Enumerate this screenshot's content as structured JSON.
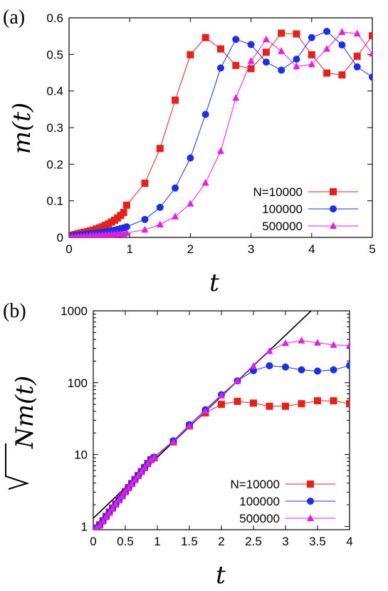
{
  "chart_data": [
    {
      "type": "line",
      "panel_label": "(a)",
      "xlabel": "t",
      "ylabel": "m(t)",
      "xlim": [
        0,
        5
      ],
      "ylim": [
        0,
        0.6
      ],
      "x_ticks": [
        "0",
        "1",
        "2",
        "3",
        "4",
        "5"
      ],
      "y_ticks": [
        "0",
        "0.1",
        "0.2",
        "0.3",
        "0.4",
        "0.5",
        "0.6"
      ],
      "legend_position": "bottom-right",
      "series": [
        {
          "name": "N=10000",
          "color": "#e8201a",
          "marker": "square",
          "x": [
            0,
            0.05,
            0.1,
            0.15,
            0.2,
            0.25,
            0.3,
            0.35,
            0.4,
            0.45,
            0.5,
            0.55,
            0.6,
            0.65,
            0.7,
            0.75,
            0.8,
            0.85,
            0.9,
            0.95,
            1.25,
            1.5,
            1.75,
            2.0,
            2.25,
            2.5,
            2.75,
            3.0,
            3.25,
            3.5,
            3.75,
            4.0,
            4.25,
            4.5,
            4.75,
            5.0
          ],
          "y": [
            0.004,
            0.006,
            0.008,
            0.01,
            0.012,
            0.014,
            0.016,
            0.018,
            0.02,
            0.023,
            0.026,
            0.029,
            0.033,
            0.037,
            0.042,
            0.047,
            0.053,
            0.06,
            0.068,
            0.088,
            0.148,
            0.243,
            0.375,
            0.499,
            0.546,
            0.515,
            0.47,
            0.461,
            0.506,
            0.558,
            0.556,
            0.499,
            0.449,
            0.444,
            0.495,
            0.551
          ]
        },
        {
          "name": "100000",
          "color": "#1a2fe8",
          "marker": "circle",
          "x": [
            0,
            0.05,
            0.1,
            0.15,
            0.2,
            0.25,
            0.3,
            0.35,
            0.4,
            0.45,
            0.5,
            0.55,
            0.6,
            0.65,
            0.7,
            0.75,
            0.8,
            0.85,
            0.9,
            0.95,
            1.25,
            1.5,
            1.75,
            2.0,
            2.25,
            2.5,
            2.75,
            3.0,
            3.25,
            3.5,
            3.75,
            4.0,
            4.25,
            4.5,
            4.75,
            5.0
          ],
          "y": [
            0.003,
            0.004,
            0.005,
            0.006,
            0.007,
            0.008,
            0.009,
            0.01,
            0.011,
            0.012,
            0.013,
            0.014,
            0.015,
            0.017,
            0.018,
            0.02,
            0.022,
            0.024,
            0.026,
            0.029,
            0.049,
            0.082,
            0.135,
            0.217,
            0.336,
            0.463,
            0.541,
            0.527,
            0.479,
            0.457,
            0.487,
            0.546,
            0.563,
            0.526,
            0.466,
            0.438
          ]
        },
        {
          "name": "500000",
          "color": "#e81ae8",
          "marker": "triangle",
          "x": [
            0,
            0.05,
            0.1,
            0.15,
            0.2,
            0.25,
            0.3,
            0.35,
            0.4,
            0.45,
            0.5,
            0.55,
            0.6,
            0.65,
            0.7,
            0.75,
            0.8,
            0.85,
            0.9,
            0.95,
            1.25,
            1.5,
            1.75,
            2.0,
            2.25,
            2.5,
            2.75,
            3.0,
            3.25,
            3.5,
            3.75,
            4.0,
            4.25,
            4.5,
            4.75,
            5.0
          ],
          "y": [
            0.001,
            0.0015,
            0.002,
            0.0025,
            0.003,
            0.0035,
            0.004,
            0.0045,
            0.005,
            0.0055,
            0.006,
            0.0065,
            0.007,
            0.0075,
            0.008,
            0.0085,
            0.009,
            0.0095,
            0.01,
            0.012,
            0.021,
            0.035,
            0.057,
            0.092,
            0.149,
            0.236,
            0.381,
            0.482,
            0.541,
            0.509,
            0.467,
            0.473,
            0.515,
            0.561,
            0.557,
            0.502
          ]
        }
      ]
    },
    {
      "type": "line",
      "panel_label": "(b)",
      "xlabel": "t",
      "ylabel": "√N m(t)",
      "xlim": [
        0,
        4
      ],
      "ylim": [
        0.9,
        1000
      ],
      "yscale": "log",
      "x_ticks": [
        "0",
        "0.5",
        "1",
        "1.5",
        "2",
        "2.5",
        "3",
        "3.5",
        "4"
      ],
      "y_ticks": [
        "1",
        "10",
        "100",
        "1000"
      ],
      "legend_position": "bottom-right",
      "reference_line": {
        "color": "#000000",
        "x": [
          0,
          3.4
        ],
        "y": [
          1.3,
          1000
        ]
      },
      "series": [
        {
          "name": "N=10000",
          "color": "#e8201a",
          "marker": "square",
          "x": [
            0,
            0.05,
            0.1,
            0.15,
            0.2,
            0.25,
            0.3,
            0.35,
            0.4,
            0.45,
            0.5,
            0.55,
            0.6,
            0.65,
            0.7,
            0.75,
            0.8,
            0.85,
            0.9,
            0.95,
            1.25,
            1.5,
            1.75,
            2.0,
            2.25,
            2.5,
            2.75,
            3.0,
            3.25,
            3.5,
            3.75,
            4.0
          ],
          "y": [
            0.9,
            0.95,
            1.05,
            1.2,
            1.38,
            1.58,
            1.8,
            2.05,
            2.35,
            2.68,
            3.05,
            3.48,
            3.95,
            4.5,
            5.1,
            5.8,
            6.6,
            7.5,
            8.5,
            9.0,
            15,
            25,
            38,
            50,
            55,
            52,
            47,
            47,
            51,
            56,
            56,
            51
          ]
        },
        {
          "name": "100000",
          "color": "#1a2fe8",
          "marker": "circle",
          "x": [
            0,
            0.05,
            0.1,
            0.15,
            0.2,
            0.25,
            0.3,
            0.35,
            0.4,
            0.45,
            0.5,
            0.55,
            0.6,
            0.65,
            0.7,
            0.75,
            0.8,
            0.85,
            0.9,
            0.95,
            1.25,
            1.5,
            1.75,
            2.0,
            2.25,
            2.5,
            2.75,
            3.0,
            3.25,
            3.5,
            3.75,
            4.0
          ],
          "y": [
            0.9,
            0.95,
            1.04,
            1.18,
            1.36,
            1.56,
            1.78,
            2.03,
            2.32,
            2.65,
            3.02,
            3.45,
            3.92,
            4.46,
            5.05,
            5.75,
            6.55,
            7.45,
            8.45,
            9.2,
            15.5,
            26,
            42,
            68,
            106,
            147,
            172,
            165,
            151,
            145,
            151,
            173
          ]
        },
        {
          "name": "500000",
          "color": "#e81ae8",
          "marker": "triangle",
          "x": [
            0,
            0.05,
            0.1,
            0.15,
            0.2,
            0.25,
            0.3,
            0.35,
            0.4,
            0.45,
            0.5,
            0.55,
            0.6,
            0.65,
            0.7,
            0.75,
            0.8,
            0.85,
            0.9,
            0.95,
            1.25,
            1.5,
            1.75,
            2.0,
            2.25,
            2.5,
            2.75,
            3.0,
            3.25,
            3.5,
            3.75,
            4.0
          ],
          "y": [
            0.9,
            0.94,
            1.03,
            1.17,
            1.35,
            1.55,
            1.77,
            2.02,
            2.31,
            2.64,
            3.0,
            3.43,
            3.9,
            4.44,
            5.03,
            5.72,
            6.52,
            7.42,
            8.4,
            9.1,
            15,
            25,
            40,
            66,
            105,
            170,
            275,
            355,
            385,
            360,
            335,
            330
          ]
        }
      ]
    }
  ]
}
